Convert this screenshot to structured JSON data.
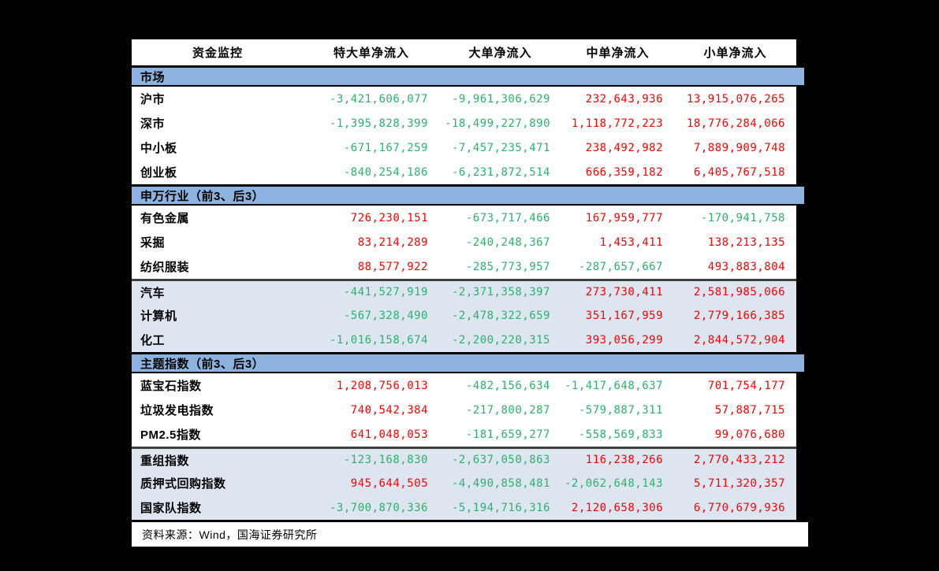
{
  "table": {
    "columns": [
      "资金监控",
      "特大单净流入",
      "大单净流入",
      "中单净流入",
      "小单净流入"
    ],
    "sections": [
      {
        "header": "市场",
        "rows": [
          {
            "label": "沪市",
            "shaded": false,
            "values": [
              "-3,421,606,077",
              "-9,961,306,629",
              "232,643,936",
              "13,915,076,265"
            ]
          },
          {
            "label": "深市",
            "shaded": false,
            "values": [
              "-1,395,828,399",
              "-18,499,227,890",
              "1,118,772,223",
              "18,776,284,066"
            ]
          },
          {
            "label": "中小板",
            "shaded": false,
            "values": [
              "-671,167,259",
              "-7,457,235,471",
              "238,492,982",
              "7,889,909,748"
            ]
          },
          {
            "label": "创业板",
            "shaded": false,
            "values": [
              "-840,254,186",
              "-6,231,872,514",
              "666,359,182",
              "6,405,767,518"
            ]
          }
        ]
      },
      {
        "header": "申万行业（前3、后3）",
        "rows": [
          {
            "label": "有色金属",
            "shaded": false,
            "values": [
              "726,230,151",
              "-673,717,466",
              "167,959,777",
              "-170,941,758"
            ]
          },
          {
            "label": "采掘",
            "shaded": false,
            "values": [
              "83,214,289",
              "-240,248,367",
              "1,453,411",
              "138,213,135"
            ]
          },
          {
            "label": "纺织服装",
            "shaded": false,
            "values": [
              "88,577,922",
              "-285,773,957",
              "-287,657,667",
              "493,883,804"
            ]
          },
          {
            "label": "汽车",
            "shaded": true,
            "values": [
              "-441,527,919",
              "-2,371,358,397",
              "273,730,411",
              "2,581,985,066"
            ]
          },
          {
            "label": "计算机",
            "shaded": true,
            "values": [
              "-567,328,490",
              "-2,478,322,659",
              "351,167,959",
              "2,779,166,385"
            ]
          },
          {
            "label": "化工",
            "shaded": true,
            "values": [
              "-1,016,158,674",
              "-2,200,220,315",
              "393,056,299",
              "2,844,572,904"
            ]
          }
        ]
      },
      {
        "header": "主题指数（前3、后3）",
        "rows": [
          {
            "label": "蓝宝石指数",
            "shaded": false,
            "values": [
              "1,208,756,013",
              "-482,156,634",
              "-1,417,648,637",
              "701,754,177"
            ]
          },
          {
            "label": "垃圾发电指数",
            "shaded": false,
            "values": [
              "740,542,384",
              "-217,800,287",
              "-579,887,311",
              "57,887,715"
            ]
          },
          {
            "label": "PM2.5指数",
            "shaded": false,
            "values": [
              "641,048,053",
              "-181,659,277",
              "-558,569,833",
              "99,076,680"
            ]
          },
          {
            "label": "重组指数",
            "shaded": true,
            "values": [
              "-123,168,830",
              "-2,637,050,863",
              "116,238,266",
              "2,770,433,212"
            ]
          },
          {
            "label": "质押式回购指数",
            "shaded": true,
            "values": [
              "945,644,505",
              "-4,490,858,481",
              "-2,062,648,143",
              "5,711,320,357"
            ]
          },
          {
            "label": "国家队指数",
            "shaded": true,
            "values": [
              "-3,700,870,336",
              "-5,194,716,316",
              "2,120,658,306",
              "6,770,679,936"
            ]
          }
        ]
      }
    ]
  },
  "footer": {
    "source": "资料来源：Wind，国海证券研究所"
  },
  "colors": {
    "positive": "#FE0000",
    "negative": "#2BB36B",
    "section_header_bg": "#8CB3DF",
    "shaded_row_bg": "#DDE5F0"
  }
}
